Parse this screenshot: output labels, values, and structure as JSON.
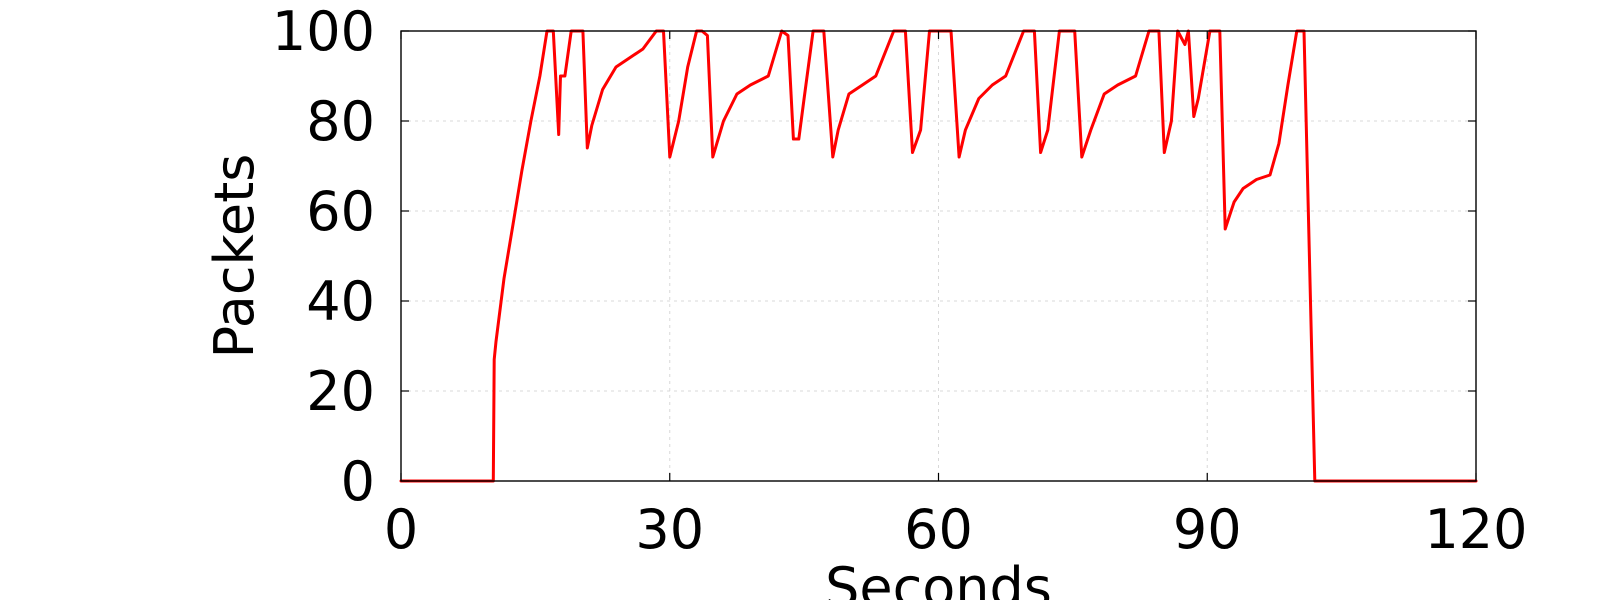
{
  "chart_data": {
    "type": "line",
    "title": "",
    "xlabel": "Seconds",
    "ylabel": "Packets",
    "xlim": [
      0,
      120
    ],
    "ylim": [
      0,
      100
    ],
    "xticks": [
      0,
      30,
      60,
      90,
      120
    ],
    "yticks": [
      0,
      20,
      40,
      60,
      80,
      100
    ],
    "grid": true,
    "legend": "none",
    "series": [
      {
        "color": "#ff0000",
        "x": [
          0,
          10.3,
          10.4,
          10.6,
          11.5,
          12.5,
          13.5,
          14.5,
          15.5,
          16.3,
          17.0,
          17.6,
          17.8,
          18.3,
          19.0,
          19.4,
          20.3,
          20.8,
          21.3,
          22.5,
          24.0,
          25.5,
          27.0,
          28.5,
          29.3,
          30.0,
          31.0,
          32.0,
          33.0,
          33.6,
          34.2,
          34.8,
          36.0,
          37.5,
          39.0,
          41.0,
          42.5,
          43.2,
          43.8,
          44.4,
          45.0,
          46.0,
          47.2,
          48.2,
          48.8,
          50.0,
          51.5,
          53.0,
          55.0,
          56.3,
          57.1,
          58.0,
          59.0,
          60.0,
          61.4,
          62.3,
          63.0,
          64.5,
          66.0,
          67.5,
          69.5,
          70.7,
          71.4,
          72.2,
          73.5,
          74.6,
          75.2,
          76.0,
          77.0,
          78.5,
          80.0,
          82.0,
          83.5,
          84.6,
          85.2,
          86.0,
          86.7,
          87.5,
          87.9,
          88.5,
          89.0,
          90.3,
          91.4,
          92.0,
          92.5,
          93.0,
          94.0,
          95.5,
          97.0,
          98.0,
          99.0,
          100.0,
          100.8,
          101.4,
          102.0,
          120
        ],
        "y": [
          0,
          0,
          27,
          31,
          45,
          57,
          69,
          80,
          90,
          100,
          100,
          77,
          90,
          90,
          100,
          100,
          100,
          74,
          79,
          87,
          92,
          94,
          96,
          100,
          100,
          72,
          80,
          92,
          100,
          100,
          99,
          72,
          80,
          86,
          88,
          90,
          100,
          99,
          76,
          76,
          85,
          100,
          100,
          72,
          78,
          86,
          88,
          90,
          100,
          100,
          73,
          78,
          100,
          100,
          100,
          72,
          78,
          85,
          88,
          90,
          100,
          100,
          73,
          78,
          100,
          100,
          100,
          72,
          78,
          86,
          88,
          90,
          100,
          100,
          73,
          80,
          100,
          97,
          100,
          81,
          85,
          100,
          100,
          56,
          59,
          62,
          65,
          67,
          68,
          75,
          88,
          100,
          100,
          50,
          0,
          0
        ]
      }
    ]
  }
}
